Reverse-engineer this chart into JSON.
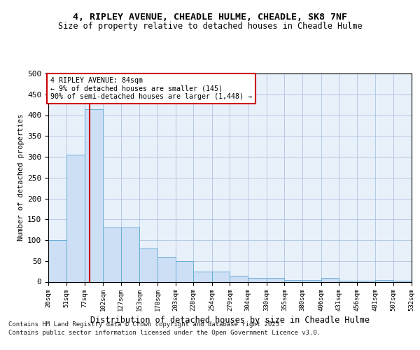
{
  "title_line1": "4, RIPLEY AVENUE, CHEADLE HULME, CHEADLE, SK8 7NF",
  "title_line2": "Size of property relative to detached houses in Cheadle Hulme",
  "xlabel": "Distribution of detached houses by size in Cheadle Hulme",
  "ylabel": "Number of detached properties",
  "footnote1": "Contains HM Land Registry data © Crown copyright and database right 2025.",
  "footnote2": "Contains public sector information licensed under the Open Government Licence v3.0.",
  "annotation_line1": "4 RIPLEY AVENUE: 84sqm",
  "annotation_line2": "← 9% of detached houses are smaller (145)",
  "annotation_line3": "90% of semi-detached houses are larger (1,448) →",
  "property_size": 84,
  "bar_color": "#ccdff5",
  "bar_edge_color": "#6aaed6",
  "vline_color": "#cc0000",
  "background_color": "#e8f0fa",
  "grid_color": "#adc4df",
  "bins": [
    26,
    51,
    77,
    102,
    127,
    153,
    178,
    203,
    228,
    254,
    279,
    304,
    330,
    355,
    380,
    406,
    431,
    456,
    481,
    507,
    532
  ],
  "bar_heights": [
    100,
    305,
    415,
    130,
    130,
    80,
    60,
    50,
    25,
    25,
    15,
    10,
    10,
    5,
    5,
    10,
    3,
    3,
    5,
    3
  ],
  "ylim": [
    0,
    500
  ],
  "yticks": [
    0,
    50,
    100,
    150,
    200,
    250,
    300,
    350,
    400,
    450,
    500
  ]
}
